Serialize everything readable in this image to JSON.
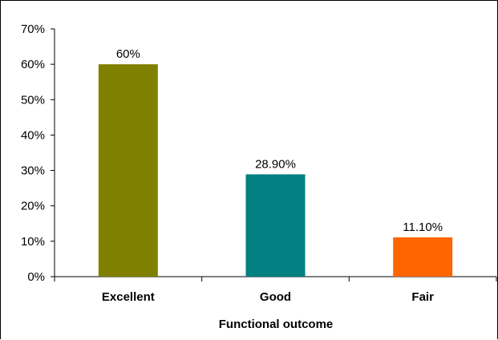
{
  "chart_data": {
    "type": "bar",
    "categories": [
      "Excellent",
      "Good",
      "Fair"
    ],
    "values": [
      60,
      28.9,
      11.1
    ],
    "data_labels": [
      "60%",
      "28.90%",
      "11.10%"
    ],
    "colors": [
      "#808000",
      "#008080",
      "#ff6600"
    ],
    "title": "",
    "xlabel": "Functional outcome",
    "ylabel": "",
    "ylim": [
      0,
      70
    ],
    "y_ticks": [
      0,
      10,
      20,
      30,
      40,
      50,
      60,
      70
    ],
    "y_tick_labels": [
      "0%",
      "10%",
      "20%",
      "30%",
      "40%",
      "50%",
      "60%",
      "70%"
    ],
    "grid": false,
    "legend": "none"
  }
}
